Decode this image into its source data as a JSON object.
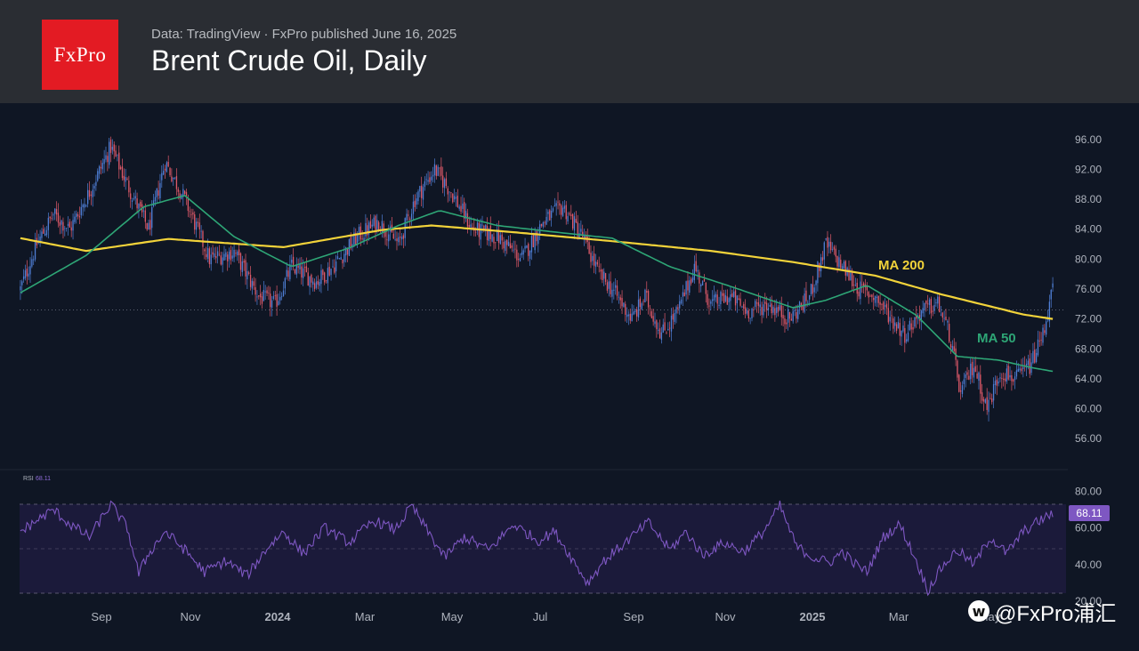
{
  "header": {
    "logo_text": "FxPro",
    "source_line": "Data: TradingView  ·  FxPro published June 16, 2025",
    "title": "Brent Crude Oil, Daily"
  },
  "watermark": {
    "icon": "weibo-icon",
    "text": "@FxPro浦汇"
  },
  "colors": {
    "background": "#0f1624",
    "header_bg": "#2a2d33",
    "logo_red": "#e31b23",
    "candle_up": "#4f7fd6",
    "candle_down": "#e05a6a",
    "ma200": "#f2d33a",
    "ma50": "#2ea676",
    "rsi_line": "#7e57c2",
    "rsi_band": "#1b1a3a",
    "axis_text": "#aeb3bd"
  },
  "chart_data": [
    {
      "type": "candlestick",
      "title": "Brent Crude Oil, Daily",
      "x_tick_labels": [
        "Sep",
        "Nov",
        "2024",
        "Mar",
        "May",
        "Jul",
        "Sep",
        "Nov",
        "2025",
        "Mar",
        "May"
      ],
      "y_tick_labels": [
        "96.00",
        "92.00",
        "88.00",
        "84.00",
        "80.00",
        "76.00",
        "72.00",
        "68.00",
        "64.00",
        "60.00",
        "56.00"
      ],
      "ylim": [
        54,
        98
      ],
      "price_line": 73.2,
      "price_anchors": [
        [
          0,
          76
        ],
        [
          10,
          82
        ],
        [
          20,
          86
        ],
        [
          30,
          84
        ],
        [
          42,
          89
        ],
        [
          55,
          95
        ],
        [
          65,
          90
        ],
        [
          78,
          84
        ],
        [
          88,
          93
        ],
        [
          100,
          88
        ],
        [
          115,
          80
        ],
        [
          130,
          81
        ],
        [
          145,
          75
        ],
        [
          155,
          74
        ],
        [
          165,
          79
        ],
        [
          180,
          77
        ],
        [
          190,
          79
        ],
        [
          205,
          83
        ],
        [
          218,
          85
        ],
        [
          230,
          82
        ],
        [
          240,
          88
        ],
        [
          252,
          92
        ],
        [
          262,
          89
        ],
        [
          275,
          84
        ],
        [
          290,
          83
        ],
        [
          305,
          80
        ],
        [
          318,
          85
        ],
        [
          330,
          87
        ],
        [
          342,
          83
        ],
        [
          352,
          78
        ],
        [
          360,
          76
        ],
        [
          372,
          72
        ],
        [
          380,
          75
        ],
        [
          390,
          70
        ],
        [
          400,
          73
        ],
        [
          410,
          79
        ],
        [
          420,
          74
        ],
        [
          432,
          75
        ],
        [
          442,
          73
        ],
        [
          455,
          74
        ],
        [
          468,
          72
        ],
        [
          480,
          75
        ],
        [
          490,
          82
        ],
        [
          500,
          79
        ],
        [
          510,
          76
        ],
        [
          520,
          75
        ],
        [
          530,
          72
        ],
        [
          538,
          70
        ],
        [
          548,
          73
        ],
        [
          558,
          74
        ],
        [
          565,
          70
        ],
        [
          572,
          62
        ],
        [
          580,
          66
        ],
        [
          588,
          60
        ],
        [
          596,
          65
        ],
        [
          606,
          64
        ],
        [
          615,
          66
        ],
        [
          622,
          70
        ],
        [
          628,
          76
        ]
      ],
      "ma200": {
        "name": "MA 200",
        "values": [
          [
            0,
            82.8
          ],
          [
            40,
            81.1
          ],
          [
            90,
            82.7
          ],
          [
            160,
            81.6
          ],
          [
            220,
            83.9
          ],
          [
            250,
            84.5
          ],
          [
            300,
            83.6
          ],
          [
            360,
            82.4
          ],
          [
            420,
            81.1
          ],
          [
            470,
            79.6
          ],
          [
            520,
            77.8
          ],
          [
            560,
            75.3
          ],
          [
            610,
            72.6
          ],
          [
            628,
            72
          ]
        ]
      },
      "ma50": {
        "name": "MA 50",
        "values": [
          [
            0,
            75.5
          ],
          [
            40,
            80.5
          ],
          [
            75,
            87
          ],
          [
            100,
            88.5
          ],
          [
            130,
            83
          ],
          [
            165,
            79
          ],
          [
            200,
            81.5
          ],
          [
            230,
            84.5
          ],
          [
            255,
            86.5
          ],
          [
            290,
            84.5
          ],
          [
            330,
            83.5
          ],
          [
            360,
            82.8
          ],
          [
            395,
            79
          ],
          [
            430,
            76.5
          ],
          [
            470,
            73.5
          ],
          [
            490,
            74.5
          ],
          [
            515,
            76.5
          ],
          [
            545,
            72.5
          ],
          [
            570,
            67
          ],
          [
            595,
            66.5
          ],
          [
            615,
            65.5
          ],
          [
            628,
            65
          ]
        ]
      },
      "annotations": [
        "MA 200",
        "MA 50"
      ]
    },
    {
      "type": "line",
      "indicator": "RSI",
      "label": "RSI",
      "current_value_text": "68.11",
      "last_value_badge": "68.11",
      "y_tick_labels": [
        "80.00",
        "60.00",
        "40.00",
        "20.00"
      ],
      "ylim": [
        20,
        88
      ],
      "band": [
        30,
        70
      ],
      "rsi_anchors": [
        [
          0,
          58
        ],
        [
          10,
          64
        ],
        [
          20,
          70
        ],
        [
          30,
          62
        ],
        [
          42,
          55
        ],
        [
          55,
          73
        ],
        [
          65,
          60
        ],
        [
          72,
          35
        ],
        [
          78,
          46
        ],
        [
          88,
          58
        ],
        [
          100,
          48
        ],
        [
          112,
          36
        ],
        [
          125,
          42
        ],
        [
          138,
          34
        ],
        [
          150,
          49
        ],
        [
          160,
          58
        ],
        [
          172,
          46
        ],
        [
          185,
          60
        ],
        [
          200,
          52
        ],
        [
          215,
          64
        ],
        [
          228,
          59
        ],
        [
          238,
          72
        ],
        [
          245,
          62
        ],
        [
          258,
          44
        ],
        [
          270,
          55
        ],
        [
          285,
          48
        ],
        [
          300,
          62
        ],
        [
          315,
          53
        ],
        [
          325,
          58
        ],
        [
          335,
          44
        ],
        [
          345,
          30
        ],
        [
          355,
          42
        ],
        [
          368,
          52
        ],
        [
          382,
          63
        ],
        [
          395,
          48
        ],
        [
          405,
          58
        ],
        [
          415,
          45
        ],
        [
          428,
          52
        ],
        [
          440,
          47
        ],
        [
          452,
          58
        ],
        [
          462,
          72
        ],
        [
          472,
          50
        ],
        [
          482,
          44
        ],
        [
          492,
          41
        ],
        [
          500,
          47
        ],
        [
          508,
          40
        ],
        [
          515,
          36
        ],
        [
          525,
          55
        ],
        [
          535,
          62
        ],
        [
          545,
          42
        ],
        [
          552,
          26
        ],
        [
          560,
          38
        ],
        [
          570,
          48
        ],
        [
          580,
          40
        ],
        [
          590,
          55
        ],
        [
          600,
          46
        ],
        [
          610,
          58
        ],
        [
          620,
          64
        ],
        [
          628,
          68
        ]
      ]
    }
  ]
}
